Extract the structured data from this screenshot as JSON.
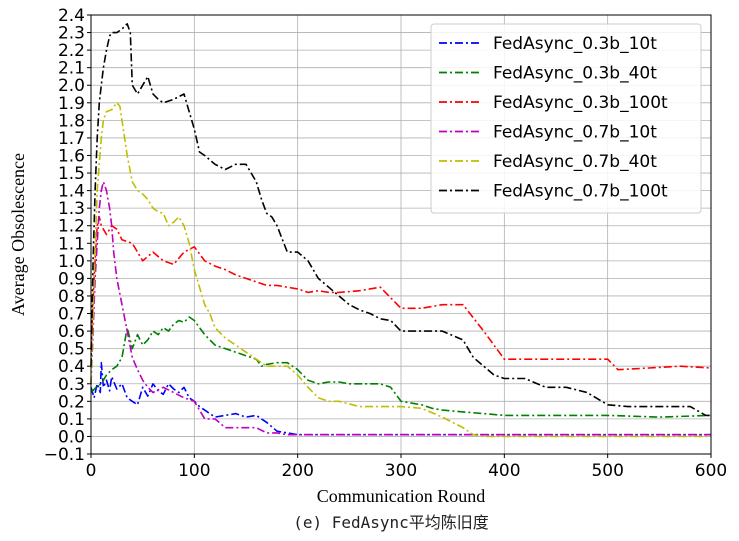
{
  "caption": "(e) FedAsync平均陈旧度",
  "chart_data": {
    "type": "line",
    "xlabel": "Communication Round",
    "ylabel": "Average Obsolescence",
    "xlim": [
      0,
      600
    ],
    "ylim": [
      -0.1,
      2.4
    ],
    "xticks": [
      0,
      100,
      200,
      300,
      400,
      500,
      600
    ],
    "yticks": [
      -0.1,
      0.0,
      0.1,
      0.2,
      0.3,
      0.4,
      0.5,
      0.6,
      0.7,
      0.8,
      0.9,
      1.0,
      1.1,
      1.2,
      1.3,
      1.4,
      1.5,
      1.6,
      1.7,
      1.8,
      1.9,
      2.0,
      2.1,
      2.2,
      2.3,
      2.4
    ],
    "grid": true,
    "legend_position": "top-right",
    "series": [
      {
        "name": "FedAsync_0.3b_10t",
        "color": "#0000ff",
        "x": [
          0,
          3,
          6,
          9,
          10,
          12,
          15,
          18,
          20,
          25,
          30,
          35,
          40,
          45,
          50,
          55,
          60,
          65,
          70,
          75,
          80,
          85,
          90,
          95,
          100,
          105,
          110,
          115,
          120,
          130,
          140,
          150,
          160,
          165,
          170,
          180,
          190,
          200,
          250,
          300,
          350,
          400,
          450,
          500,
          550,
          600
        ],
        "y": [
          0.28,
          0.22,
          0.3,
          0.25,
          0.42,
          0.28,
          0.32,
          0.26,
          0.34,
          0.27,
          0.3,
          0.22,
          0.2,
          0.18,
          0.28,
          0.23,
          0.3,
          0.26,
          0.24,
          0.3,
          0.27,
          0.25,
          0.28,
          0.22,
          0.2,
          0.17,
          0.15,
          0.13,
          0.11,
          0.12,
          0.13,
          0.11,
          0.12,
          0.1,
          0.08,
          0.03,
          0.02,
          0.01,
          0.01,
          0.01,
          0.01,
          0.01,
          0.01,
          0.01,
          0.01,
          0.01
        ]
      },
      {
        "name": "FedAsync_0.3b_40t",
        "color": "#008000",
        "x": [
          0,
          5,
          10,
          15,
          20,
          25,
          30,
          35,
          40,
          45,
          50,
          55,
          60,
          65,
          70,
          75,
          80,
          85,
          90,
          95,
          100,
          105,
          110,
          120,
          130,
          140,
          150,
          160,
          165,
          170,
          180,
          190,
          200,
          205,
          210,
          220,
          230,
          240,
          250,
          260,
          270,
          280,
          290,
          300,
          310,
          320,
          330,
          340,
          360,
          380,
          400,
          420,
          450,
          500,
          550,
          600
        ],
        "y": [
          0.25,
          0.28,
          0.3,
          0.35,
          0.38,
          0.4,
          0.45,
          0.62,
          0.5,
          0.58,
          0.52,
          0.55,
          0.6,
          0.58,
          0.62,
          0.6,
          0.64,
          0.66,
          0.65,
          0.68,
          0.66,
          0.62,
          0.58,
          0.52,
          0.5,
          0.48,
          0.46,
          0.44,
          0.4,
          0.41,
          0.42,
          0.42,
          0.38,
          0.35,
          0.32,
          0.3,
          0.31,
          0.31,
          0.3,
          0.3,
          0.3,
          0.3,
          0.28,
          0.2,
          0.19,
          0.18,
          0.16,
          0.15,
          0.14,
          0.13,
          0.12,
          0.12,
          0.12,
          0.12,
          0.11,
          0.12
        ]
      },
      {
        "name": "FedAsync_0.3b_100t",
        "color": "#ff0000",
        "x": [
          0,
          3,
          6,
          8,
          10,
          15,
          20,
          25,
          30,
          40,
          50,
          60,
          70,
          80,
          90,
          100,
          110,
          120,
          130,
          140,
          150,
          160,
          170,
          180,
          190,
          200,
          210,
          220,
          230,
          240,
          260,
          280,
          300,
          320,
          340,
          360,
          380,
          400,
          420,
          450,
          480,
          500,
          510,
          540,
          570,
          600
        ],
        "y": [
          0.5,
          0.9,
          1.2,
          1.25,
          1.2,
          1.15,
          1.2,
          1.18,
          1.12,
          1.1,
          1.0,
          1.05,
          1.0,
          0.98,
          1.05,
          1.08,
          1.0,
          0.97,
          0.95,
          0.92,
          0.9,
          0.88,
          0.86,
          0.86,
          0.85,
          0.84,
          0.82,
          0.83,
          0.82,
          0.82,
          0.83,
          0.85,
          0.73,
          0.73,
          0.75,
          0.75,
          0.6,
          0.44,
          0.44,
          0.44,
          0.44,
          0.44,
          0.38,
          0.39,
          0.4,
          0.39
        ]
      },
      {
        "name": "FedAsync_0.7b_10t",
        "color": "#bf00bf",
        "x": [
          0,
          2,
          4,
          6,
          8,
          10,
          12,
          15,
          18,
          20,
          22,
          25,
          30,
          35,
          40,
          45,
          50,
          55,
          60,
          70,
          80,
          90,
          100,
          110,
          120,
          130,
          140,
          150,
          160,
          170,
          180,
          190,
          200,
          250,
          300,
          350,
          400,
          450,
          500,
          550,
          600
        ],
        "y": [
          0.3,
          0.6,
          0.9,
          1.1,
          1.3,
          1.4,
          1.45,
          1.4,
          1.3,
          1.2,
          1.05,
          0.9,
          0.75,
          0.6,
          0.45,
          0.38,
          0.32,
          0.28,
          0.25,
          0.28,
          0.25,
          0.22,
          0.2,
          0.1,
          0.1,
          0.05,
          0.05,
          0.05,
          0.05,
          0.02,
          0.02,
          0.01,
          0.01,
          0.01,
          0.01,
          0.01,
          0.01,
          0.01,
          0.01,
          0.01,
          0.01
        ]
      },
      {
        "name": "FedAsync_0.7b_40t",
        "color": "#bfbf00",
        "x": [
          0,
          3,
          6,
          10,
          12,
          15,
          20,
          25,
          28,
          30,
          35,
          40,
          45,
          50,
          55,
          60,
          65,
          70,
          75,
          80,
          85,
          90,
          95,
          100,
          105,
          110,
          115,
          120,
          130,
          140,
          150,
          160,
          170,
          180,
          190,
          200,
          210,
          220,
          230,
          240,
          260,
          280,
          300,
          320,
          340,
          360,
          370,
          380,
          400,
          450,
          500,
          550,
          600
        ],
        "y": [
          0.3,
          0.9,
          1.4,
          1.7,
          1.8,
          1.85,
          1.86,
          1.9,
          1.88,
          1.8,
          1.6,
          1.45,
          1.4,
          1.38,
          1.35,
          1.3,
          1.28,
          1.27,
          1.2,
          1.22,
          1.25,
          1.2,
          1.1,
          0.95,
          0.85,
          0.75,
          0.7,
          0.62,
          0.56,
          0.52,
          0.48,
          0.44,
          0.4,
          0.4,
          0.4,
          0.35,
          0.28,
          0.22,
          0.2,
          0.2,
          0.17,
          0.17,
          0.17,
          0.16,
          0.11,
          0.05,
          0.01,
          0.0,
          0.0,
          0.0,
          0.0,
          0.0,
          0.0
        ]
      },
      {
        "name": "FedAsync_0.7b_100t",
        "color": "#000000",
        "x": [
          0,
          2,
          4,
          6,
          8,
          10,
          12,
          15,
          18,
          20,
          25,
          30,
          35,
          38,
          40,
          45,
          50,
          55,
          60,
          65,
          70,
          80,
          90,
          100,
          105,
          110,
          120,
          130,
          140,
          150,
          160,
          165,
          170,
          175,
          180,
          190,
          200,
          210,
          220,
          230,
          240,
          250,
          260,
          270,
          280,
          290,
          300,
          320,
          340,
          360,
          370,
          380,
          390,
          400,
          420,
          440,
          460,
          480,
          500,
          520,
          540,
          560,
          580,
          595,
          600
        ],
        "y": [
          0.4,
          1.0,
          1.4,
          1.7,
          1.9,
          2.0,
          2.1,
          2.2,
          2.28,
          2.3,
          2.3,
          2.32,
          2.35,
          2.3,
          2.0,
          1.95,
          2.0,
          2.05,
          1.95,
          1.92,
          1.9,
          1.92,
          1.95,
          1.75,
          1.62,
          1.6,
          1.55,
          1.52,
          1.55,
          1.55,
          1.45,
          1.35,
          1.27,
          1.25,
          1.2,
          1.05,
          1.05,
          1.0,
          0.9,
          0.85,
          0.8,
          0.75,
          0.72,
          0.7,
          0.67,
          0.66,
          0.6,
          0.6,
          0.6,
          0.55,
          0.45,
          0.4,
          0.35,
          0.33,
          0.33,
          0.28,
          0.28,
          0.25,
          0.18,
          0.17,
          0.17,
          0.17,
          0.17,
          0.12,
          0.12
        ]
      }
    ]
  }
}
